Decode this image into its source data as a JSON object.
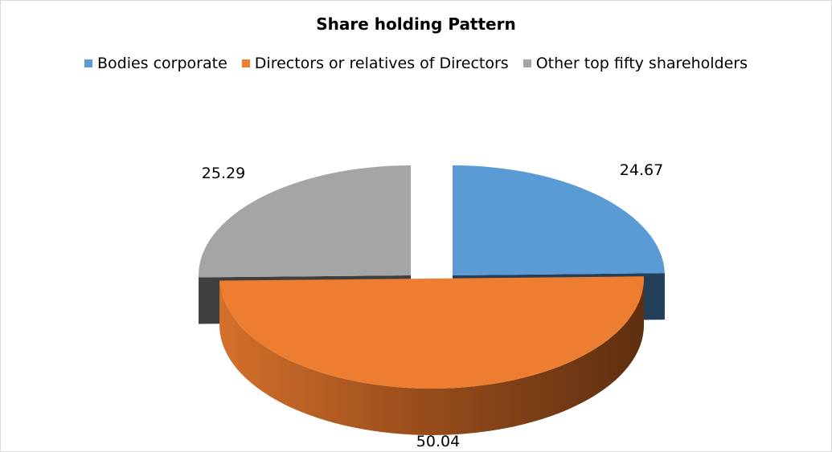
{
  "chart_data": {
    "type": "pie",
    "title": "Share holding Pattern",
    "legend_position": "top",
    "series": [
      {
        "name": "Bodies corporate",
        "value": 24.67,
        "label": "24.67",
        "color": "#5b9bd5",
        "side_color": "#243f5a"
      },
      {
        "name": "Directors or relatives of Directors",
        "value": 50.04,
        "label": "50.04",
        "color": "#ed7d31",
        "side_color": "#7a3c12"
      },
      {
        "name": "Other top fifty shareholders",
        "value": 25.29,
        "label": "25.29",
        "color": "#a5a5a5",
        "side_color": "#3f3f3f"
      }
    ]
  }
}
